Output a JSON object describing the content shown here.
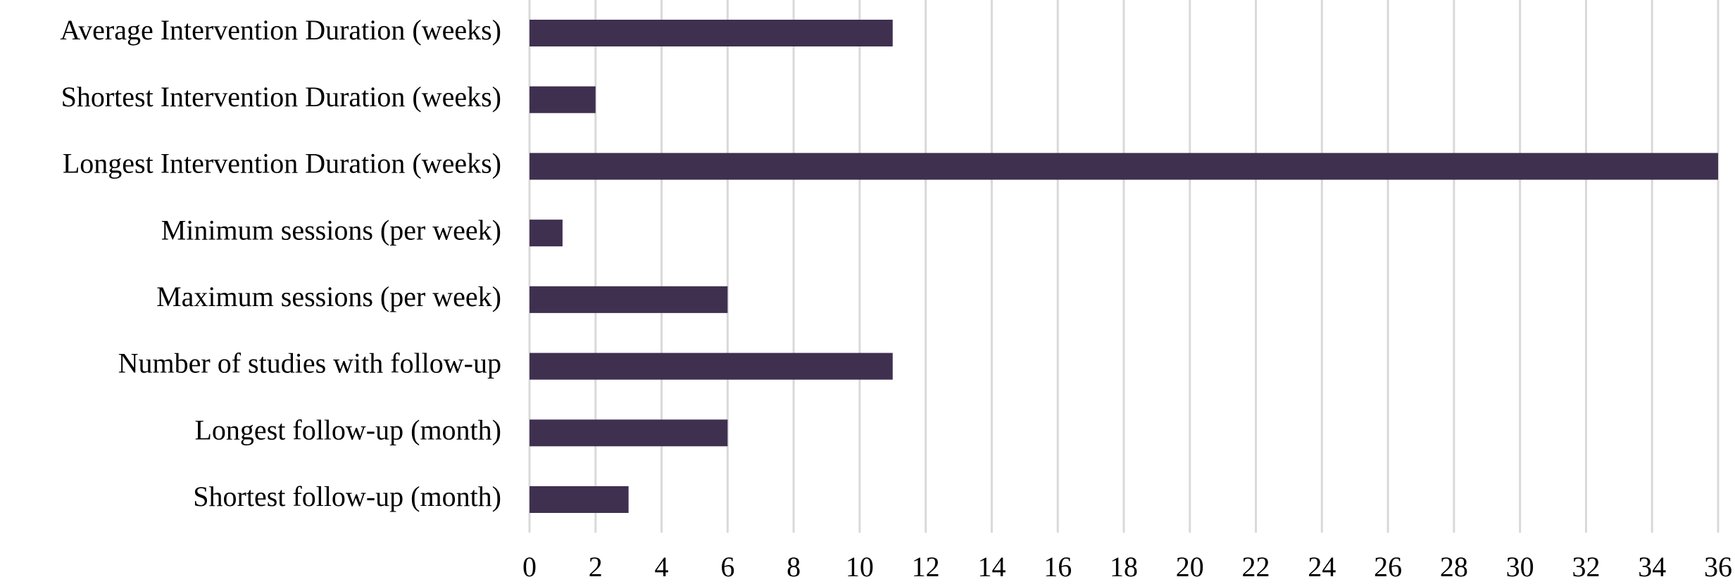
{
  "chart_data": {
    "type": "bar",
    "orientation": "horizontal",
    "categories": [
      "Average Intervention Duration (weeks)",
      "Shortest Intervention Duration (weeks)",
      "Longest Intervention Duration (weeks)",
      "Minimum sessions (per week)",
      "Maximum sessions (per week)",
      "Number of studies with follow-up",
      "Longest follow-up (month)",
      "Shortest follow-up (month)"
    ],
    "values": [
      11,
      2,
      36,
      1,
      6,
      11,
      6,
      3
    ],
    "color": "#3f3050",
    "xlim": [
      0,
      36
    ],
    "xticks": [
      0,
      2,
      4,
      6,
      8,
      10,
      12,
      14,
      16,
      18,
      20,
      22,
      24,
      26,
      28,
      30,
      32,
      34,
      36
    ],
    "grid": true
  }
}
